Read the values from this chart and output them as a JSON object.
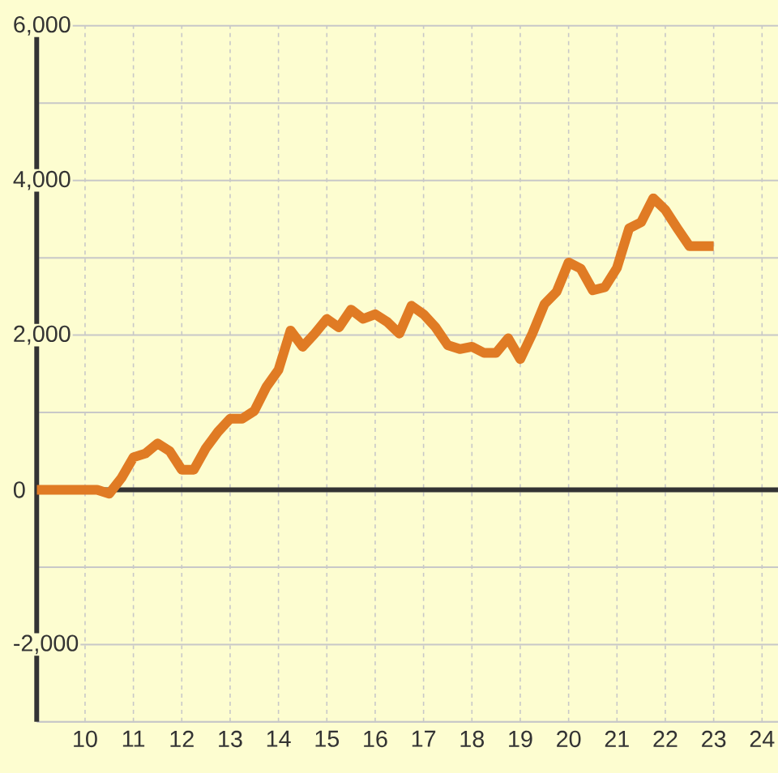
{
  "chart_data": {
    "type": "line",
    "x": [
      9,
      9.25,
      9.5,
      9.75,
      10,
      10.25,
      10.5,
      10.75,
      11,
      11.25,
      11.5,
      11.75,
      12,
      12.25,
      12.5,
      12.75,
      13,
      13.25,
      13.5,
      13.75,
      14,
      14.25,
      14.5,
      14.75,
      15,
      15.25,
      15.5,
      15.75,
      16,
      16.25,
      16.5,
      16.75,
      17,
      17.25,
      17.5,
      17.75,
      18,
      18.25,
      18.5,
      18.75,
      19,
      19.25,
      19.5,
      19.75,
      20,
      20.25,
      20.5,
      20.75,
      21,
      21.25,
      21.5,
      21.75,
      22,
      22.25,
      22.5,
      22.75,
      23
    ],
    "values": [
      0,
      0,
      0,
      0,
      0,
      0,
      -50,
      150,
      420,
      470,
      600,
      500,
      260,
      260,
      540,
      750,
      920,
      920,
      1020,
      1330,
      1550,
      2060,
      1850,
      2020,
      2210,
      2100,
      2330,
      2210,
      2270,
      2170,
      2020,
      2380,
      2270,
      2100,
      1870,
      1820,
      1850,
      1770,
      1770,
      1960,
      1690,
      2020,
      2400,
      2560,
      2940,
      2860,
      2580,
      2620,
      2870,
      3380,
      3460,
      3770,
      3620,
      3380,
      3150,
      3150,
      3150
    ],
    "color": "#e07b24",
    "xlim": [
      9,
      24.33
    ],
    "ylim": [
      -3000,
      6000
    ],
    "xticks": [
      10,
      11,
      12,
      13,
      14,
      15,
      16,
      17,
      18,
      19,
      20,
      21,
      22,
      23,
      24
    ],
    "yticks": [
      {
        "value": -2000,
        "label": "-2,000"
      },
      {
        "value": -1000,
        "label": null
      },
      0,
      {
        "value": 1000,
        "label": null
      },
      {
        "value": 2000,
        "label": "2,000"
      },
      {
        "value": 3000,
        "label": null
      },
      {
        "value": 4000,
        "label": "4,000"
      },
      {
        "value": 5000,
        "label": null
      },
      {
        "value": 6000,
        "label": "6,000"
      }
    ],
    "grid": true
  }
}
